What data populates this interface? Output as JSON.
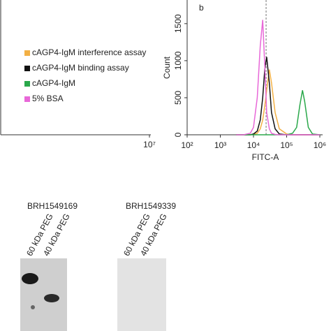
{
  "chart_data": {
    "type": "line",
    "panel_label": "b",
    "xlabel": "FITC-A",
    "ylabel": "Count",
    "x": [
      3000,
      5000,
      8000,
      10000,
      13000,
      16000,
      19000,
      22000,
      25000,
      30000,
      35000,
      45000,
      60000,
      100000,
      150000,
      200000,
      250000,
      300000,
      350000,
      450000,
      600000,
      1000000
    ],
    "series": [
      {
        "name": "cAGP4-IgM interference assay",
        "color": "#f2b045",
        "values": [
          0,
          0,
          0,
          5,
          20,
          80,
          200,
          400,
          600,
          880,
          700,
          300,
          80,
          10,
          0,
          0,
          0,
          0,
          0,
          0,
          0,
          0
        ]
      },
      {
        "name": "cAGP4-IgM binding assay",
        "color": "#111111",
        "values": [
          0,
          0,
          0,
          10,
          50,
          200,
          500,
          900,
          1050,
          700,
          300,
          80,
          10,
          0,
          0,
          0,
          0,
          0,
          0,
          0,
          0,
          0
        ]
      },
      {
        "name": "cAGP4-IgM",
        "color": "#2aa84a",
        "values": [
          0,
          0,
          0,
          0,
          0,
          0,
          0,
          0,
          0,
          0,
          0,
          0,
          0,
          0,
          20,
          100,
          400,
          600,
          450,
          100,
          10,
          0
        ]
      },
      {
        "name": "5% BSA",
        "color": "#e868d8",
        "values": [
          0,
          0,
          20,
          100,
          500,
          1200,
          1550,
          900,
          300,
          80,
          20,
          5,
          0,
          0,
          0,
          0,
          0,
          0,
          0,
          0,
          0,
          0
        ]
      }
    ],
    "reference_line": 24000,
    "log_x": true,
    "xlim": [
      100,
      1000000
    ],
    "xticks": [
      {
        "value": 100,
        "label": "10²"
      },
      {
        "value": 1000,
        "label": "10³"
      },
      {
        "value": 10000,
        "label": "10⁴"
      },
      {
        "value": 100000,
        "label": "10⁵"
      },
      {
        "value": 1000000,
        "label": "10⁶"
      }
    ],
    "ylim": [
      0,
      1800
    ],
    "yticks": [
      0,
      500,
      1000,
      1500
    ]
  },
  "left_panel": {
    "xtick_label": "10⁷"
  },
  "blots": [
    {
      "title": "BRH1549169",
      "lanes": [
        "60 kDa PEG",
        "40 kDa PEG"
      ]
    },
    {
      "title": "BRH1549339",
      "lanes": [
        "60 kDa PEG",
        "40 kDa PEG"
      ]
    }
  ]
}
